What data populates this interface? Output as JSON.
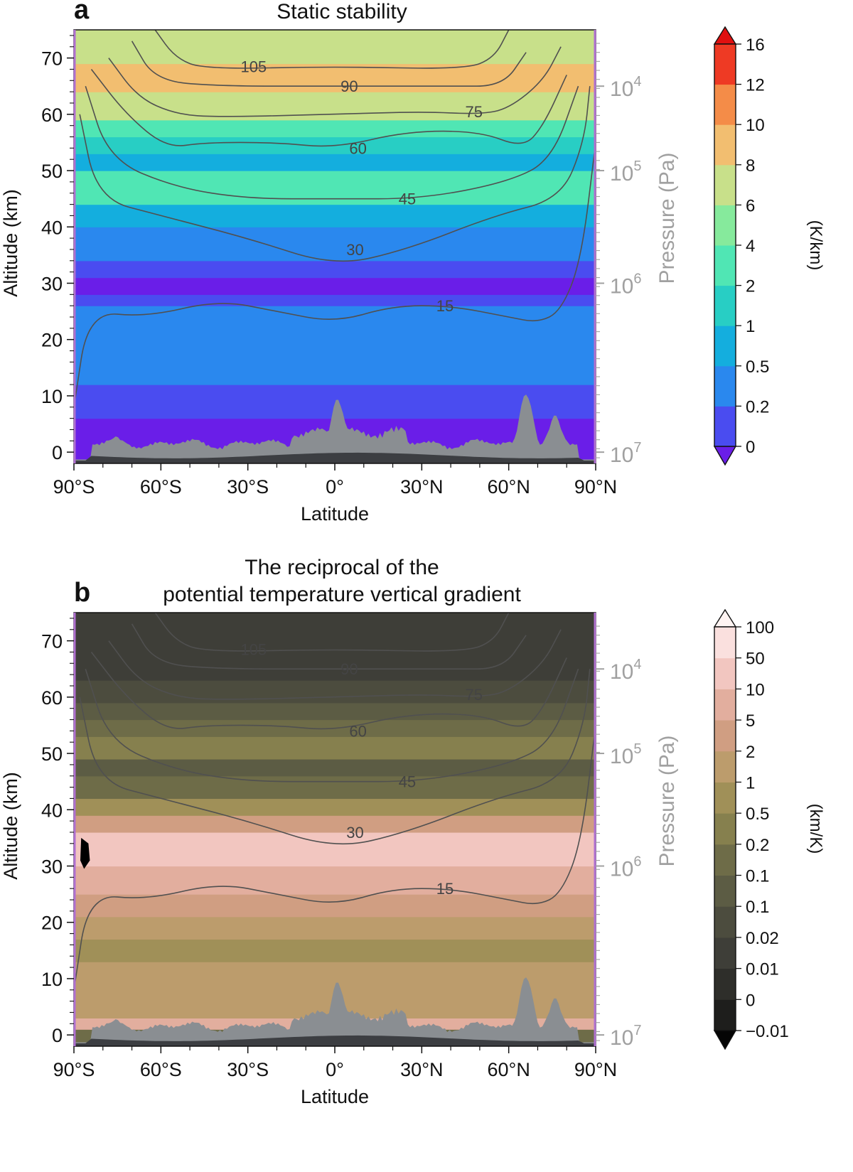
{
  "chart_data": [
    {
      "type": "heatmap",
      "panel_label": "a",
      "title": "Static stability",
      "xlabel": "Latitude",
      "ylabel": "Altitude (km)",
      "y2label": "Pressure (Pa)",
      "xlim": [
        -90,
        90
      ],
      "ylim": [
        -2,
        75
      ],
      "x_ticks": [
        -90,
        -60,
        -30,
        0,
        30,
        60,
        90
      ],
      "x_tick_labels": [
        "90°S",
        "60°S",
        "30°S",
        "0°",
        "30°N",
        "60°N",
        "90°N"
      ],
      "y_ticks": [
        0,
        10,
        20,
        30,
        40,
        50,
        60,
        70
      ],
      "y_tick_labels": [
        "0",
        "10",
        "20",
        "30",
        "40",
        "50",
        "60",
        "70"
      ],
      "pressure_ticks": [
        {
          "base": "10",
          "exp": "7",
          "altitude": 0
        },
        {
          "base": "10",
          "exp": "6",
          "altitude": 30
        },
        {
          "base": "10",
          "exp": "5",
          "altitude": 50
        },
        {
          "base": "10",
          "exp": "4",
          "altitude": 65
        }
      ],
      "colorbar": {
        "label": "(K/km)",
        "tick_labels": [
          "0",
          "0.2",
          "0.5",
          "1",
          "2",
          "4",
          "6",
          "8",
          "10",
          "12",
          "16"
        ],
        "colors": [
          "#6a1ee8",
          "#4a4cf0",
          "#2a88ee",
          "#14aede",
          "#28cec4",
          "#50e6b4",
          "#86ea9c",
          "#c8e08a",
          "#f2be70",
          "#f48c48",
          "#ee3a24",
          "#e01010"
        ]
      },
      "layers": [
        {
          "altitude_range": [
            -2,
            4
          ],
          "level": 0
        },
        {
          "altitude_range": [
            4,
            6
          ],
          "level": 0
        },
        {
          "altitude_range": [
            6,
            12
          ],
          "level": 1
        },
        {
          "altitude_range": [
            12,
            26
          ],
          "level": 2
        },
        {
          "altitude_range": [
            26,
            28
          ],
          "level": 1
        },
        {
          "altitude_range": [
            28,
            31
          ],
          "level": 0
        },
        {
          "altitude_range": [
            31,
            34
          ],
          "level": 1
        },
        {
          "altitude_range": [
            34,
            40
          ],
          "level": 2
        },
        {
          "altitude_range": [
            40,
            44
          ],
          "level": 3
        },
        {
          "altitude_range": [
            44,
            50
          ],
          "level": 5
        },
        {
          "altitude_range": [
            50,
            53
          ],
          "level": 3
        },
        {
          "altitude_range": [
            53,
            56
          ],
          "level": 4
        },
        {
          "altitude_range": [
            56,
            59
          ],
          "level": 5
        },
        {
          "altitude_range": [
            59,
            64
          ],
          "level": 7
        },
        {
          "altitude_range": [
            64,
            69
          ],
          "level": 8
        },
        {
          "altitude_range": [
            69,
            75
          ],
          "level": 7
        }
      ],
      "contours": [
        {
          "label": "15",
          "points": [
            [
              -90,
              8
            ],
            [
              -85,
              25
            ],
            [
              -65,
              24
            ],
            [
              -40,
              27
            ],
            [
              -20,
              25
            ],
            [
              0,
              23
            ],
            [
              20,
              26
            ],
            [
              40,
              26
            ],
            [
              60,
              24
            ],
            [
              70,
              23
            ],
            [
              78,
              25
            ],
            [
              85,
              34
            ],
            [
              90,
              55
            ]
          ]
        },
        {
          "label": "30",
          "points": [
            [
              -88,
              60
            ],
            [
              -82,
              45
            ],
            [
              -60,
              42
            ],
            [
              -30,
              38
            ],
            [
              0,
              33
            ],
            [
              25,
              36
            ],
            [
              55,
              42
            ],
            [
              78,
              45
            ],
            [
              86,
              55
            ],
            [
              88,
              65
            ]
          ]
        },
        {
          "label": "45",
          "points": [
            [
              -86,
              65
            ],
            [
              -78,
              52
            ],
            [
              -55,
              47
            ],
            [
              -30,
              45
            ],
            [
              0,
              45
            ],
            [
              30,
              45
            ],
            [
              60,
              48
            ],
            [
              75,
              52
            ],
            [
              84,
              65
            ]
          ]
        },
        {
          "label": "60",
          "points": [
            [
              -84,
              68
            ],
            [
              -72,
              60
            ],
            [
              -58,
              54
            ],
            [
              -45,
              55
            ],
            [
              -20,
              55
            ],
            [
              0,
              54
            ],
            [
              25,
              57
            ],
            [
              50,
              57
            ],
            [
              65,
              54
            ],
            [
              72,
              58
            ],
            [
              80,
              67
            ]
          ]
        },
        {
          "label": "75",
          "points": [
            [
              -78,
              70
            ],
            [
              -68,
              63
            ],
            [
              -55,
              60
            ],
            [
              -40,
              59.5
            ],
            [
              0,
              60
            ],
            [
              30,
              60.5
            ],
            [
              50,
              60
            ],
            [
              60,
              61
            ],
            [
              72,
              66
            ],
            [
              78,
              72
            ]
          ]
        },
        {
          "label": "90",
          "points": [
            [
              -70,
              73
            ],
            [
              -62,
              66
            ],
            [
              -40,
              65
            ],
            [
              0,
              65
            ],
            [
              40,
              65
            ],
            [
              58,
              65
            ],
            [
              66,
              71
            ]
          ]
        },
        {
          "label": "105",
          "points": [
            [
              -62,
              75
            ],
            [
              -55,
              70
            ],
            [
              -45,
              68
            ],
            [
              0,
              68.5
            ],
            [
              45,
              68
            ],
            [
              55,
              70
            ],
            [
              60,
              75
            ]
          ]
        }
      ]
    },
    {
      "type": "heatmap",
      "panel_label": "b",
      "title": "The reciprocal of the\npotential temperature vertical gradient",
      "title_lines": [
        "The reciprocal of the",
        "potential temperature vertical gradient"
      ],
      "xlabel": "Latitude",
      "ylabel": "Altitude (km)",
      "y2label": "Pressure (Pa)",
      "xlim": [
        -90,
        90
      ],
      "ylim": [
        -2,
        75
      ],
      "x_ticks": [
        -90,
        -60,
        -30,
        0,
        30,
        60,
        90
      ],
      "x_tick_labels": [
        "90°S",
        "60°S",
        "30°S",
        "0°",
        "30°N",
        "60°N",
        "90°N"
      ],
      "y_ticks": [
        0,
        10,
        20,
        30,
        40,
        50,
        60,
        70
      ],
      "y_tick_labels": [
        "0",
        "10",
        "20",
        "30",
        "40",
        "50",
        "60",
        "70"
      ],
      "pressure_ticks": [
        {
          "base": "10",
          "exp": "7",
          "altitude": 0
        },
        {
          "base": "10",
          "exp": "6",
          "altitude": 30
        },
        {
          "base": "10",
          "exp": "5",
          "altitude": 50
        },
        {
          "base": "10",
          "exp": "4",
          "altitude": 65
        }
      ],
      "colorbar": {
        "label": "(km/K)",
        "tick_labels": [
          "−0.01",
          "0",
          "0.01",
          "0.02",
          "0.1",
          "0.1",
          "0.2",
          "0.5",
          "1",
          "2",
          "5",
          "10",
          "50",
          "100"
        ],
        "colors": [
          "#050505",
          "#1e1e1c",
          "#2e2e2a",
          "#3e3e38",
          "#4c4c3e",
          "#5c5c44",
          "#6e6c48",
          "#86804e",
          "#a09058",
          "#bc9c6c",
          "#d09e82",
          "#e2ae9e",
          "#f2c6c0",
          "#fae0de",
          "#fff4f2"
        ]
      },
      "layers": [
        {
          "altitude_range": [
            -2,
            1
          ],
          "level": 6
        },
        {
          "altitude_range": [
            1,
            3
          ],
          "level": 11
        },
        {
          "altitude_range": [
            3,
            13
          ],
          "level": 9
        },
        {
          "altitude_range": [
            13,
            17
          ],
          "level": 8
        },
        {
          "altitude_range": [
            17,
            21
          ],
          "level": 9
        },
        {
          "altitude_range": [
            21,
            25
          ],
          "level": 10
        },
        {
          "altitude_range": [
            25,
            30
          ],
          "level": 11
        },
        {
          "altitude_range": [
            30,
            36
          ],
          "level": 12
        },
        {
          "altitude_range": [
            36,
            39
          ],
          "level": 10
        },
        {
          "altitude_range": [
            39,
            42
          ],
          "level": 8
        },
        {
          "altitude_range": [
            42,
            46
          ],
          "level": 6
        },
        {
          "altitude_range": [
            46,
            49
          ],
          "level": 5
        },
        {
          "altitude_range": [
            49,
            53
          ],
          "level": 7
        },
        {
          "altitude_range": [
            53,
            56
          ],
          "level": 6
        },
        {
          "altitude_range": [
            56,
            59
          ],
          "level": 5
        },
        {
          "altitude_range": [
            59,
            63
          ],
          "level": 4
        },
        {
          "altitude_range": [
            63,
            75
          ],
          "level": 3
        }
      ],
      "contours": [
        {
          "label": "15",
          "points": [
            [
              -90,
              8
            ],
            [
              -85,
              25
            ],
            [
              -65,
              24
            ],
            [
              -40,
              27
            ],
            [
              -20,
              25
            ],
            [
              0,
              23
            ],
            [
              20,
              26
            ],
            [
              40,
              26
            ],
            [
              60,
              24
            ],
            [
              70,
              23
            ],
            [
              78,
              25
            ],
            [
              85,
              34
            ],
            [
              90,
              55
            ]
          ]
        },
        {
          "label": "30",
          "points": [
            [
              -88,
              60
            ],
            [
              -82,
              45
            ],
            [
              -60,
              42
            ],
            [
              -30,
              38
            ],
            [
              0,
              33
            ],
            [
              25,
              36
            ],
            [
              55,
              42
            ],
            [
              78,
              45
            ],
            [
              86,
              55
            ],
            [
              88,
              65
            ]
          ]
        },
        {
          "label": "45",
          "points": [
            [
              -86,
              65
            ],
            [
              -78,
              52
            ],
            [
              -55,
              47
            ],
            [
              -30,
              45
            ],
            [
              0,
              45
            ],
            [
              30,
              45
            ],
            [
              60,
              48
            ],
            [
              75,
              52
            ],
            [
              84,
              65
            ]
          ]
        },
        {
          "label": "60",
          "points": [
            [
              -84,
              68
            ],
            [
              -72,
              60
            ],
            [
              -58,
              54
            ],
            [
              -45,
              55
            ],
            [
              -20,
              55
            ],
            [
              0,
              54
            ],
            [
              25,
              57
            ],
            [
              50,
              57
            ],
            [
              65,
              54
            ],
            [
              72,
              58
            ],
            [
              80,
              67
            ]
          ]
        },
        {
          "label": "75",
          "points": [
            [
              -78,
              70
            ],
            [
              -68,
              63
            ],
            [
              -55,
              60
            ],
            [
              -40,
              59.5
            ],
            [
              0,
              60
            ],
            [
              30,
              60.5
            ],
            [
              50,
              60
            ],
            [
              60,
              61
            ],
            [
              72,
              66
            ],
            [
              78,
              72
            ]
          ]
        },
        {
          "label": "90",
          "points": [
            [
              -70,
              73
            ],
            [
              -62,
              66
            ],
            [
              -40,
              65
            ],
            [
              0,
              65
            ],
            [
              40,
              65
            ],
            [
              58,
              65
            ],
            [
              66,
              71
            ]
          ]
        },
        {
          "label": "105",
          "points": [
            [
              -62,
              75
            ],
            [
              -55,
              70
            ],
            [
              -45,
              68
            ],
            [
              0,
              68.5
            ],
            [
              45,
              68
            ],
            [
              55,
              70
            ],
            [
              60,
              75
            ]
          ]
        }
      ]
    }
  ],
  "terrain": {
    "peaks": [
      {
        "lat": 1,
        "altitude": 9
      },
      {
        "lat": 66,
        "altitude": 10
      },
      {
        "lat": 76,
        "altitude": 6
      },
      {
        "lat": -75,
        "altitude": 2.3
      }
    ]
  },
  "colors": {
    "contour": "#505050",
    "terrain": "#8a8e92",
    "terrain_base": "#3c3e42",
    "pressure_axis": "#a0a0a0",
    "frame_side": "#b070d0"
  }
}
